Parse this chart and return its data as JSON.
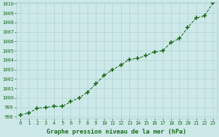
{
  "x": [
    0,
    1,
    2,
    3,
    4,
    5,
    6,
    7,
    8,
    9,
    10,
    11,
    12,
    13,
    14,
    15,
    16,
    17,
    18,
    19,
    20,
    21,
    22,
    23
  ],
  "y": [
    998.2,
    998.4,
    998.9,
    999.0,
    999.1,
    999.1,
    999.6,
    1000.0,
    1000.6,
    1001.5,
    1002.4,
    1003.0,
    1003.5,
    1004.1,
    1004.2,
    1004.5,
    1004.9,
    1005.0,
    1005.9,
    1006.3,
    1007.5,
    1008.5,
    1008.7,
    1010.1
  ],
  "line_color": "#1a6e1a",
  "marker": "+",
  "marker_size": 4,
  "marker_linewidth": 1.2,
  "bg_color": "#cce8e8",
  "grid_color": "#aacccc",
  "xlabel": "Graphe pression niveau de la mer (hPa)",
  "xlabel_fontsize": 6.5,
  "ylim": [
    998,
    1010
  ],
  "xlim": [
    -0.5,
    23.5
  ],
  "yticks": [
    998,
    999,
    1000,
    1001,
    1002,
    1003,
    1004,
    1005,
    1006,
    1007,
    1008,
    1009,
    1010
  ],
  "xtick_labels": [
    "0",
    "1",
    "2",
    "3",
    "4",
    "5",
    "6",
    "7",
    "8",
    "9",
    "10",
    "11",
    "12",
    "13",
    "14",
    "15",
    "16",
    "17",
    "18",
    "19",
    "20",
    "21",
    "22",
    "23"
  ],
  "tick_fontsize": 5.0,
  "label_color": "#1a6e1a",
  "line_width": 0.8,
  "line_style": "--"
}
